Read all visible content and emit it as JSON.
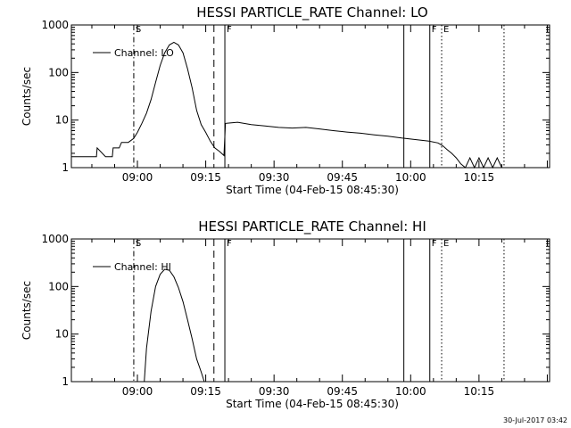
{
  "timestamp": "30-Jul-2017 03:42",
  "chart_data": [
    {
      "type": "line",
      "title": "HESSI PARTICLE_RATE Channel: LO",
      "xlabel": "Start Time (04-Feb-15 08:45:30)",
      "ylabel": "Counts/sec",
      "yscale": "log",
      "ylim": [
        1,
        1000
      ],
      "xlim": [
        "08:45:30",
        "10:30:30"
      ],
      "x_ticks": [
        "09:00",
        "09:15",
        "09:30",
        "09:45",
        "10:00",
        "10:15"
      ],
      "y_ticks": [
        "1",
        "10",
        "100",
        "1000"
      ],
      "legend": "Channel: LO",
      "legend_position": "top-left",
      "markers": [
        {
          "label": "S",
          "time": "08:59:12",
          "style": "dashdot"
        },
        {
          "label": "",
          "time": "09:16:48",
          "style": "dashed"
        },
        {
          "label": "F",
          "time": "09:19:12",
          "style": "solid"
        },
        {
          "label": "",
          "time": "09:58:30",
          "style": "solid"
        },
        {
          "label": "F",
          "time": "10:04:12",
          "style": "solid"
        },
        {
          "label": "E",
          "time": "10:06:48",
          "style": "dotted"
        },
        {
          "label": "",
          "time": "10:20:30",
          "style": "dotted"
        }
      ],
      "series": [
        {
          "name": "Channel: LO",
          "x": [
            "08:45:30",
            "08:51:00",
            "08:51:10",
            "08:53:00",
            "08:53:10",
            "08:54:30",
            "08:54:40",
            "08:56:00",
            "08:56:30",
            "08:58:00",
            "08:59:10",
            "09:00:00",
            "09:01:00",
            "09:02:00",
            "09:03:00",
            "09:04:00",
            "09:05:00",
            "09:06:00",
            "09:07:00",
            "09:08:00",
            "09:09:00",
            "09:10:00",
            "09:11:00",
            "09:12:00",
            "09:13:00",
            "09:14:00",
            "09:15:00",
            "09:16:00",
            "09:17:00",
            "09:18:00",
            "09:19:00",
            "09:19:20",
            "09:22:00",
            "09:25:00",
            "09:28:00",
            "09:31:00",
            "09:34:00",
            "09:37:00",
            "09:40:00",
            "09:43:00",
            "09:46:00",
            "09:49:00",
            "09:52:00",
            "09:55:00",
            "09:58:00",
            "10:01:00",
            "10:04:00",
            "10:06:00",
            "10:07:00",
            "10:08:00",
            "10:09:00",
            "10:10:00",
            "10:11:00",
            "10:12:00",
            "10:13:00",
            "10:14:00",
            "10:15:00",
            "10:16:00",
            "10:17:00",
            "10:18:00",
            "10:19:00",
            "10:20:00"
          ],
          "y": [
            1.7,
            1.7,
            2.6,
            1.7,
            1.7,
            1.7,
            2.6,
            2.6,
            3.4,
            3.4,
            4.1,
            5.5,
            8.6,
            14,
            27,
            62,
            140,
            260,
            380,
            430,
            380,
            260,
            120,
            48,
            16,
            8,
            5.5,
            3.6,
            2.6,
            2.2,
            1.8,
            8.5,
            9.0,
            8.0,
            7.5,
            7.0,
            6.8,
            7.0,
            6.5,
            6.0,
            5.6,
            5.3,
            4.9,
            4.6,
            4.2,
            3.9,
            3.6,
            3.3,
            2.9,
            2.4,
            2.0,
            1.6,
            1.2,
            1.0,
            1.6,
            1.0,
            1.6,
            1.0,
            1.6,
            1.0,
            1.6,
            1.0
          ]
        }
      ]
    },
    {
      "type": "line",
      "title": "HESSI PARTICLE_RATE Channel: HI",
      "xlabel": "Start Time (04-Feb-15 08:45:30)",
      "ylabel": "Counts/sec",
      "yscale": "log",
      "ylim": [
        1,
        1000
      ],
      "xlim": [
        "08:45:30",
        "10:30:30"
      ],
      "x_ticks": [
        "09:00",
        "09:15",
        "09:30",
        "09:45",
        "10:00",
        "10:15"
      ],
      "y_ticks": [
        "1",
        "10",
        "100",
        "1000"
      ],
      "legend": "Channel: HI",
      "legend_position": "top-left",
      "markers": [
        {
          "label": "S",
          "time": "08:59:12",
          "style": "dashdot"
        },
        {
          "label": "",
          "time": "09:16:48",
          "style": "dashed"
        },
        {
          "label": "F",
          "time": "09:19:12",
          "style": "solid"
        },
        {
          "label": "",
          "time": "09:58:30",
          "style": "solid"
        },
        {
          "label": "F",
          "time": "10:04:12",
          "style": "solid"
        },
        {
          "label": "E",
          "time": "10:06:48",
          "style": "dotted"
        },
        {
          "label": "",
          "time": "10:20:30",
          "style": "dotted"
        }
      ],
      "series": [
        {
          "name": "Channel: HI",
          "x": [
            "09:01:30",
            "09:02:00",
            "09:03:00",
            "09:04:00",
            "09:05:00",
            "09:06:00",
            "09:07:00",
            "09:08:00",
            "09:09:00",
            "09:10:00",
            "09:11:00",
            "09:12:00",
            "09:13:00",
            "09:14:00",
            "09:14:40"
          ],
          "y": [
            1.0,
            5.0,
            30,
            100,
            180,
            230,
            220,
            160,
            95,
            48,
            20,
            8,
            3,
            1.6,
            1.0
          ]
        }
      ]
    }
  ]
}
